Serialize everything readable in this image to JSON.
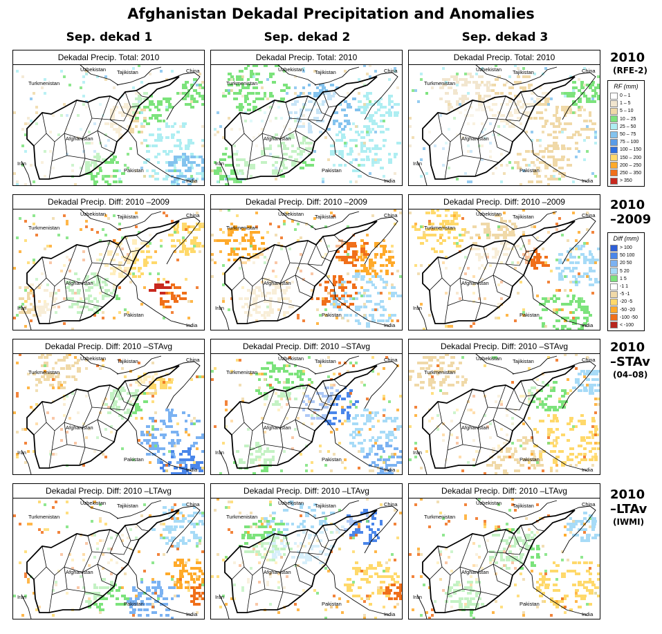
{
  "title": "Afghanistan Dekadal Precipitation and Anomalies",
  "columns": [
    "Sep. dekad 1",
    "Sep. dekad 2",
    "Sep. dekad 3"
  ],
  "row_labels": [
    {
      "line1": "2010",
      "line2": "(RFE-2)"
    },
    {
      "line1": "2010",
      "line2": "–2009"
    },
    {
      "line1": "2010",
      "line2": "–STAv",
      "line3": "(04–08)"
    },
    {
      "line1": "2010",
      "line2": "–LTAv",
      "line3": "(IWMI)"
    }
  ],
  "panel_titles": [
    "Dekadal Precip. Total: 2010",
    "Dekadal Precip. Diff:  2010 –2009",
    "Dekadal Precip. Diff:  2010 –STAvg",
    "Dekadal Precip. Diff:  2010 –LTAvg"
  ],
  "map_labels": {
    "uzbekistan": "Uzbekistan",
    "tajikistan": "Tajikistan",
    "china": "China",
    "turkmenistan": "Turkmenistan",
    "afghanistan": "Afghanistan",
    "iran": "Iran",
    "pakistan": "Pakistan",
    "india": "India"
  },
  "legend_rf": {
    "title": "RF (mm)",
    "items": [
      {
        "label": "0 – 1",
        "color": "#ffffff"
      },
      {
        "label": "1 – 5",
        "color": "#f2e6cf"
      },
      {
        "label": "5 – 10",
        "color": "#f0d9a8"
      },
      {
        "label": "10 – 25",
        "color": "#7ce37c"
      },
      {
        "label": "25 – 50",
        "color": "#aeeef2"
      },
      {
        "label": "50 – 75",
        "color": "#84c3ee"
      },
      {
        "label": "75 – 100",
        "color": "#5a9ce8"
      },
      {
        "label": "100 – 150",
        "color": "#2e6fe0"
      },
      {
        "label": "150 – 200",
        "color": "#ffd96b"
      },
      {
        "label": "200 – 250",
        "color": "#ffaa2a"
      },
      {
        "label": "250 – 350",
        "color": "#f06f1a"
      },
      {
        "label": "> 350",
        "color": "#c8281e"
      }
    ]
  },
  "legend_diff": {
    "title": "Diff (mm)",
    "items": [
      {
        "label": "> 100",
        "color": "#2e5fd8"
      },
      {
        "label": "50   100",
        "color": "#4a86ea"
      },
      {
        "label": "20   50",
        "color": "#7bb2f2"
      },
      {
        "label": "5   20",
        "color": "#a7dbf7"
      },
      {
        "label": "1   5",
        "color": "#7ce37c"
      },
      {
        "label": "-1   1",
        "color": "#ffffff"
      },
      {
        "label": "-5   -1",
        "color": "#f0d9a8"
      },
      {
        "label": "-20   -5",
        "color": "#ffd96b"
      },
      {
        "label": "-50   -20",
        "color": "#ffaa2a"
      },
      {
        "label": "-100   -50",
        "color": "#f06f1a"
      },
      {
        "label": "< -100",
        "color": "#b8261e"
      }
    ]
  }
}
